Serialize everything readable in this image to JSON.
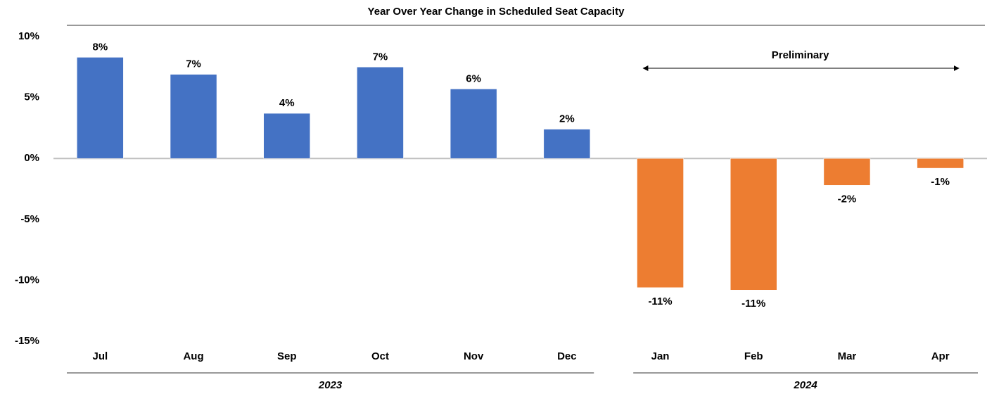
{
  "chart_data": {
    "type": "bar",
    "title": "Year Over Year Change in Scheduled Seat Capacity",
    "categories": [
      "Jul",
      "Aug",
      "Sep",
      "Oct",
      "Nov",
      "Dec",
      "Jan",
      "Feb",
      "Mar",
      "Apr"
    ],
    "values": [
      8.3,
      6.9,
      3.7,
      7.5,
      5.7,
      2.4,
      -10.6,
      -10.8,
      -2.2,
      -0.8
    ],
    "value_labels": [
      "8%",
      "7%",
      "4%",
      "7%",
      "6%",
      "2%",
      "-11%",
      "-11%",
      "-2%",
      "-1%"
    ],
    "groups": [
      {
        "label": "2023",
        "count": 6,
        "color": "#4472c4"
      },
      {
        "label": "2024",
        "count": 4,
        "color": "#ed7d31"
      }
    ],
    "annotation": {
      "text": "Preliminary",
      "group": 1
    },
    "ylim": [
      -15,
      10
    ],
    "yticks": [
      {
        "value": 10,
        "label": "10%"
      },
      {
        "value": 5,
        "label": "5%"
      },
      {
        "value": 0,
        "label": "0%"
      },
      {
        "value": -5,
        "label": "-5%"
      },
      {
        "value": -10,
        "label": "-10%"
      },
      {
        "value": -15,
        "label": "-15%"
      }
    ],
    "grid": false
  }
}
